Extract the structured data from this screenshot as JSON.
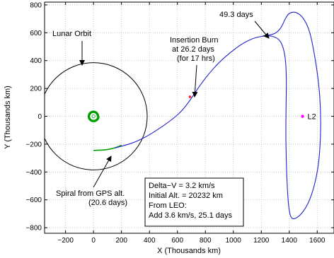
{
  "chart_data": {
    "type": "line",
    "xlabel": "X (Thousands km)",
    "ylabel": "Y (Thousands km)",
    "xlim": [
      -350,
      1720
    ],
    "ylim": [
      -840,
      820
    ],
    "xticks": [
      -200,
      0,
      200,
      400,
      600,
      800,
      1000,
      1200,
      1400,
      1600
    ],
    "yticks": [
      -800,
      -600,
      -400,
      -200,
      0,
      200,
      400,
      600,
      800
    ],
    "grid": true,
    "lunar_orbit": {
      "center": [
        0,
        0
      ],
      "radius": 384
    },
    "gps_spiral": {
      "start_radius": 26.5,
      "end_radius": 40,
      "turns": 4
    },
    "series": [
      {
        "color": "#00a000",
        "points": [
          [
            0,
            -245
          ],
          [
            60,
            -243
          ],
          [
            110,
            -238
          ],
          [
            160,
            -225
          ],
          [
            200,
            -208
          ]
        ]
      },
      {
        "color": "#2222cc",
        "points": [
          [
            150,
            -228
          ],
          [
            220,
            -210
          ],
          [
            300,
            -185
          ],
          [
            380,
            -145
          ],
          [
            460,
            -95
          ],
          [
            540,
            -40
          ],
          [
            620,
            25
          ],
          [
            680,
            100
          ],
          [
            720,
            160
          ],
          [
            760,
            220
          ],
          [
            820,
            300
          ],
          [
            900,
            390
          ],
          [
            980,
            460
          ],
          [
            1060,
            520
          ],
          [
            1140,
            560
          ],
          [
            1200,
            575
          ],
          [
            1250,
            580
          ],
          [
            1300,
            570
          ],
          [
            1340,
            540
          ],
          [
            1370,
            450
          ],
          [
            1380,
            300
          ],
          [
            1378,
            100
          ],
          [
            1375,
            -100
          ],
          [
            1378,
            -300
          ],
          [
            1385,
            -500
          ],
          [
            1395,
            -650
          ],
          [
            1410,
            -730
          ],
          [
            1440,
            -740
          ],
          [
            1490,
            -700
          ],
          [
            1540,
            -620
          ],
          [
            1580,
            -500
          ],
          [
            1610,
            -350
          ],
          [
            1625,
            -150
          ],
          [
            1625,
            50
          ],
          [
            1610,
            250
          ],
          [
            1580,
            450
          ],
          [
            1545,
            620
          ],
          [
            1500,
            710
          ],
          [
            1450,
            750
          ],
          [
            1400,
            745
          ],
          [
            1370,
            700
          ],
          [
            1345,
            640
          ],
          [
            1310,
            600
          ],
          [
            1270,
            585
          ],
          [
            1240,
            582
          ],
          [
            1210,
            578
          ]
        ]
      }
    ],
    "markers": {
      "insertion_burn": {
        "x": 690,
        "y": 140,
        "color": "#ff2020"
      },
      "l2": {
        "x": 1495,
        "y": 0,
        "color": "#ff00ff",
        "label": "L2"
      }
    },
    "annotations": {
      "days_49": "49.3 days",
      "lunar_orbit": "Lunar Orbit",
      "insertion_line1": "Insertion Burn",
      "insertion_line2": "at 26.2 days",
      "insertion_line3": "(for 17 hrs)",
      "spiral_line1": "Spiral from GPS alt.",
      "spiral_line2": "(20.6 days)",
      "box_line1": "Delta−V = 3.2 km/s",
      "box_line2": "Initial Alt. = 20232 km",
      "box_line3": "From LEO:",
      "box_line4": "Add 3.6 km/s, 25.1 days"
    }
  }
}
